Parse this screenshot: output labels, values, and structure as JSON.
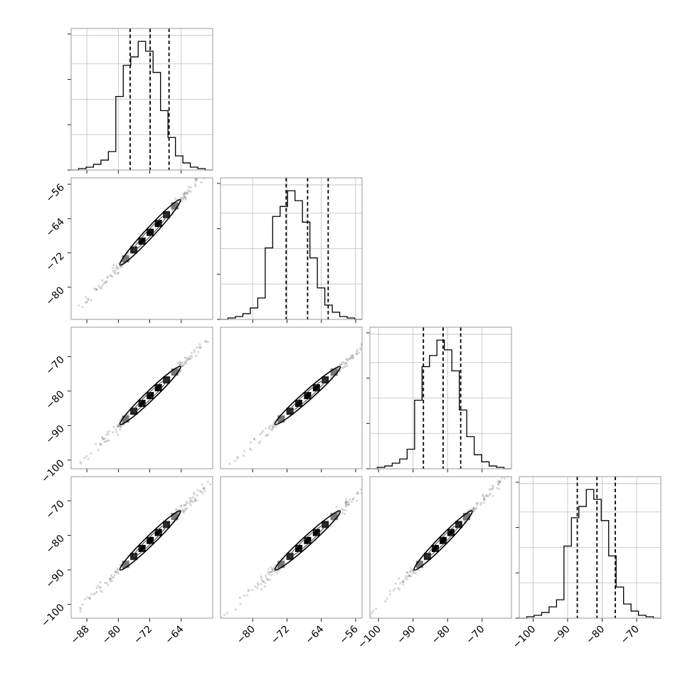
{
  "chart_data": {
    "type": "corner",
    "title": "",
    "grid": true,
    "n_params": 4,
    "ranges": [
      [
        -92,
        -56
      ],
      [
        -87.5,
        -54.5
      ],
      [
        -102.5,
        -61.5
      ],
      [
        -104,
        -63
      ]
    ],
    "ticks": [
      [
        -88,
        -80,
        -72,
        -64
      ],
      [
        -80,
        -72,
        -64,
        -56
      ],
      [
        -100,
        -90,
        -80,
        -70
      ],
      [
        -100,
        -90,
        -80,
        -70
      ]
    ],
    "tick_labels": [
      [
        "−88",
        "−80",
        "−72",
        "−64"
      ],
      [
        "−80",
        "−72",
        "−64",
        "−56"
      ],
      [
        "−100",
        "−90",
        "−80",
        "−70"
      ],
      [
        "−100",
        "−90",
        "−80",
        "−70"
      ]
    ],
    "quantiles": [
      [
        -77.0,
        -71.9,
        -67.1
      ],
      [
        -72.2,
        -67.2,
        -62.4
      ],
      [
        -87.0,
        -81.3,
        -76.2
      ],
      [
        -87.2,
        -81.5,
        -76.2
      ]
    ],
    "hist_counts": [
      [
        0,
        1,
        2,
        4,
        7,
        13,
        52,
        74,
        80,
        91,
        84,
        69,
        42,
        23,
        10,
        5,
        2,
        1,
        0
      ],
      [
        0,
        1,
        2,
        4,
        8,
        15,
        50,
        72,
        79,
        90,
        83,
        68,
        43,
        22,
        10,
        5,
        2,
        1,
        0
      ],
      [
        0,
        1,
        2,
        4,
        7,
        14,
        49,
        73,
        81,
        92,
        85,
        70,
        42,
        23,
        10,
        5,
        2,
        1,
        0
      ],
      [
        0,
        1,
        2,
        4,
        8,
        13,
        51,
        71,
        79,
        91,
        84,
        69,
        44,
        22,
        10,
        5,
        2,
        1,
        0
      ]
    ],
    "correlation": 0.99
  }
}
